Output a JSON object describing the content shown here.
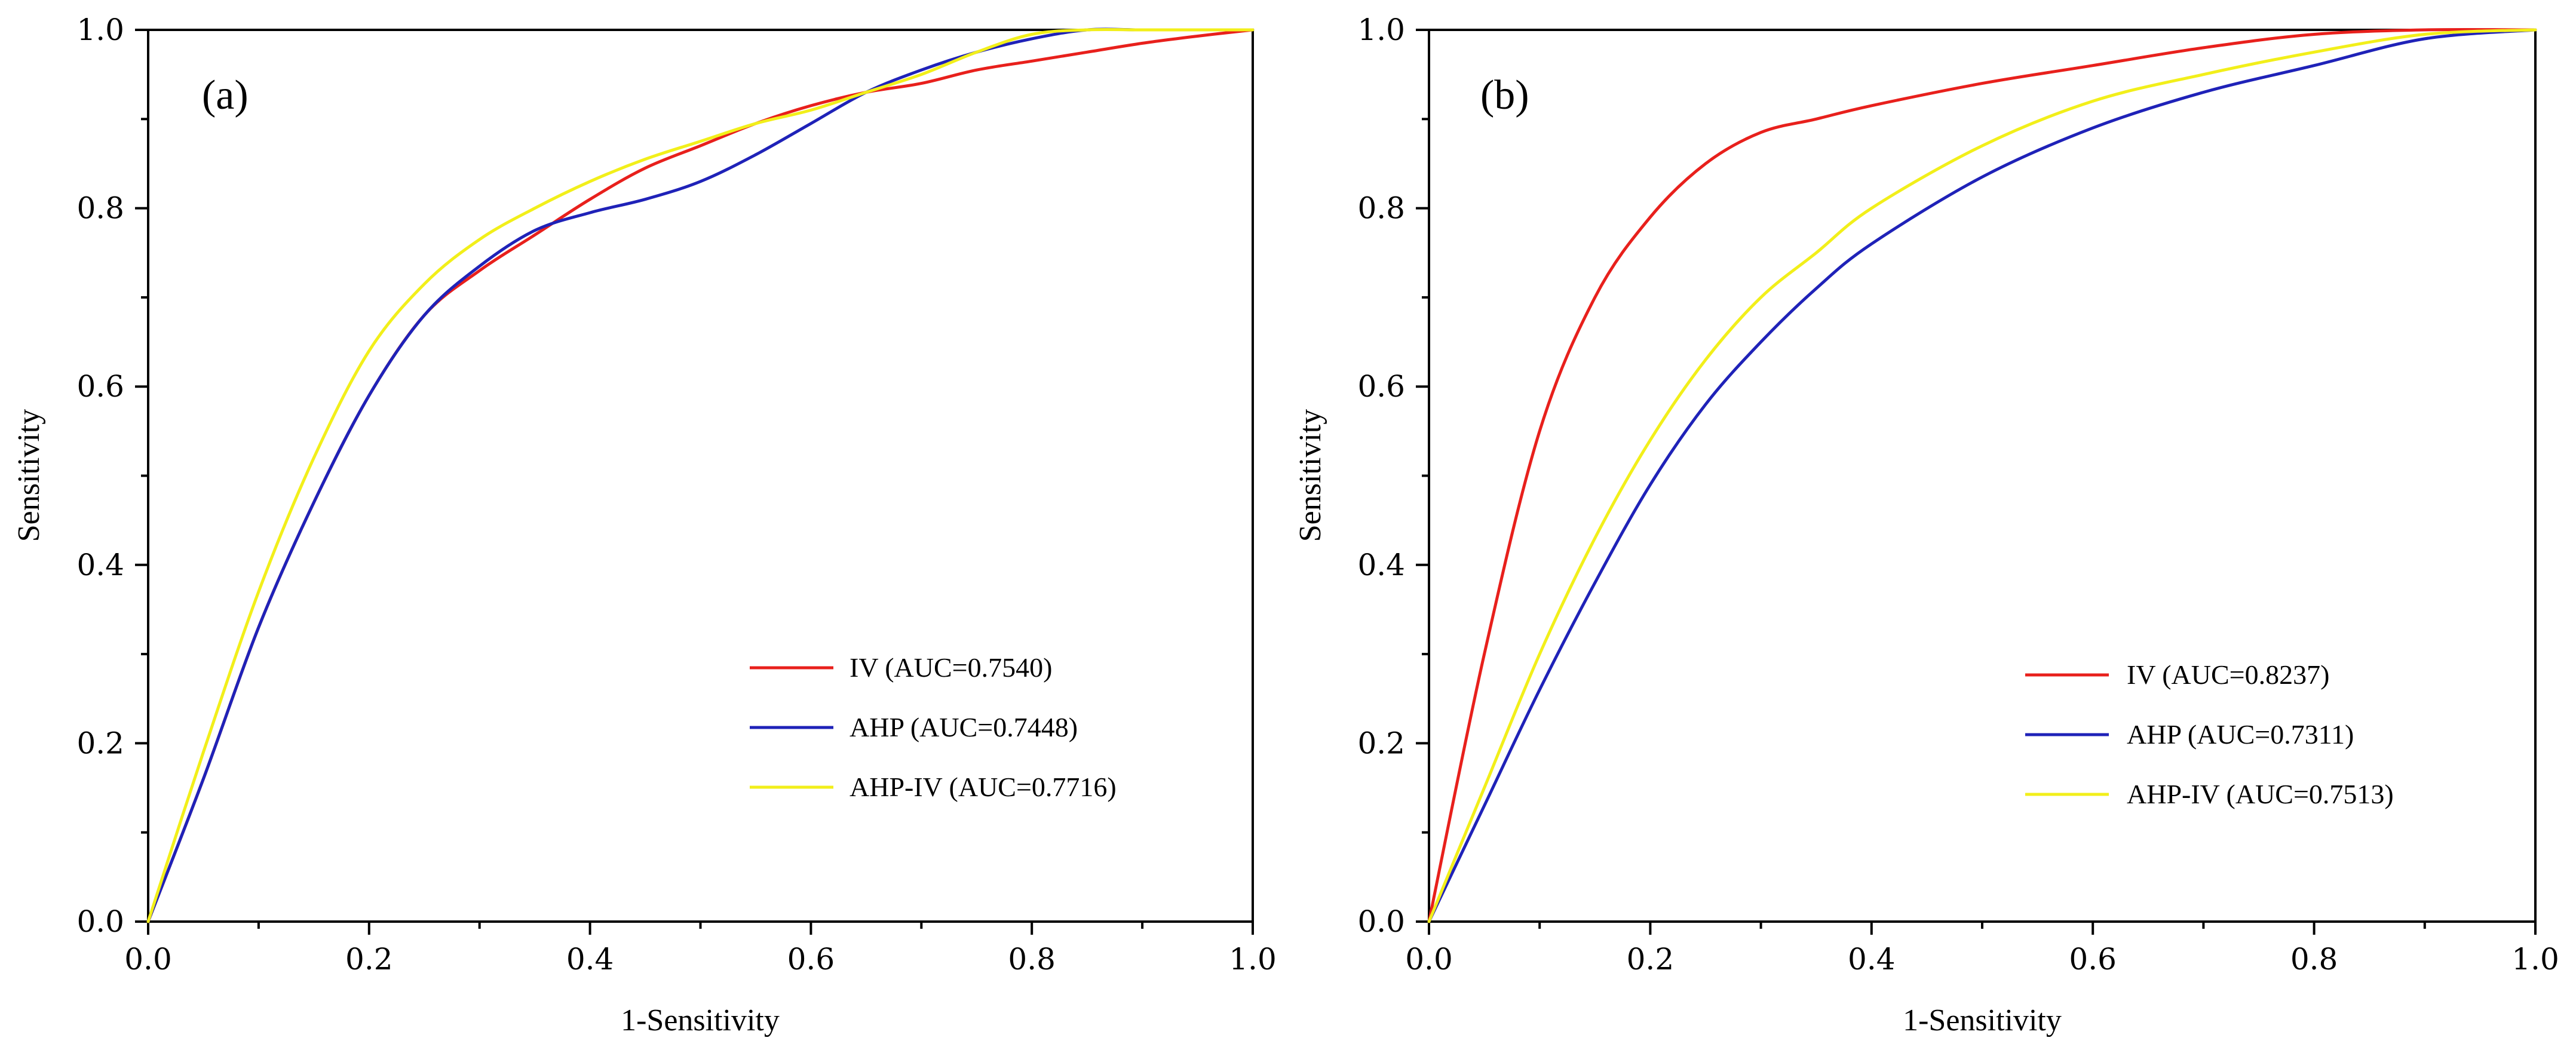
{
  "chart_data": [
    {
      "type": "line",
      "panel_label": "(a)",
      "xlabel": "1-Sensitivity",
      "ylabel": "Sensitivity",
      "xlim": [
        0,
        1
      ],
      "ylim": [
        0,
        1
      ],
      "x_ticks": [
        "0.0",
        "0.2",
        "0.4",
        "0.6",
        "0.8",
        "1.0"
      ],
      "y_ticks": [
        "0.0",
        "0.2",
        "0.4",
        "0.6",
        "0.8",
        "1.0"
      ],
      "legend_position": "bottom-right",
      "series": [
        {
          "name": "IV (AUC=0.7540)",
          "color": "#e8201c",
          "x": [
            0,
            0.05,
            0.1,
            0.15,
            0.2,
            0.25,
            0.3,
            0.35,
            0.4,
            0.45,
            0.5,
            0.55,
            0.6,
            0.65,
            0.7,
            0.75,
            0.8,
            0.85,
            0.9,
            0.95,
            1.0
          ],
          "y": [
            0,
            0.16,
            0.33,
            0.47,
            0.59,
            0.68,
            0.73,
            0.77,
            0.81,
            0.845,
            0.87,
            0.895,
            0.915,
            0.93,
            0.94,
            0.955,
            0.965,
            0.975,
            0.985,
            0.993,
            1.0
          ]
        },
        {
          "name": "AHP (AUC=0.7448)",
          "color": "#1f22b8",
          "x": [
            0,
            0.05,
            0.1,
            0.15,
            0.2,
            0.25,
            0.3,
            0.35,
            0.4,
            0.45,
            0.5,
            0.55,
            0.6,
            0.65,
            0.7,
            0.75,
            0.8,
            0.85,
            0.9,
            0.95,
            1.0
          ],
          "y": [
            0,
            0.16,
            0.33,
            0.47,
            0.59,
            0.68,
            0.735,
            0.775,
            0.795,
            0.81,
            0.83,
            0.86,
            0.895,
            0.93,
            0.955,
            0.975,
            0.99,
            1.0,
            1.0,
            1.0,
            1.0
          ]
        },
        {
          "name": "AHP-IV (AUC=0.7716)",
          "color": "#f2ef1a",
          "x": [
            0,
            0.05,
            0.1,
            0.15,
            0.2,
            0.25,
            0.3,
            0.35,
            0.4,
            0.45,
            0.5,
            0.55,
            0.6,
            0.65,
            0.7,
            0.75,
            0.8,
            0.85,
            0.9,
            0.95,
            1.0
          ],
          "y": [
            0,
            0.19,
            0.37,
            0.52,
            0.64,
            0.715,
            0.765,
            0.8,
            0.83,
            0.855,
            0.875,
            0.895,
            0.91,
            0.93,
            0.95,
            0.975,
            0.995,
            1.0,
            1.0,
            1.0,
            1.0
          ]
        }
      ]
    },
    {
      "type": "line",
      "panel_label": "(b)",
      "xlabel": "1-Sensitivity",
      "ylabel": "Sensitivity",
      "xlim": [
        0,
        1
      ],
      "ylim": [
        0,
        1
      ],
      "x_ticks": [
        "0.0",
        "0.2",
        "0.4",
        "0.6",
        "0.8",
        "1.0"
      ],
      "y_ticks": [
        "0.0",
        "0.2",
        "0.4",
        "0.6",
        "0.8",
        "1.0"
      ],
      "legend_position": "bottom-right",
      "series": [
        {
          "name": "IV (AUC=0.8237)",
          "color": "#e8201c",
          "x": [
            0,
            0.05,
            0.1,
            0.15,
            0.2,
            0.25,
            0.3,
            0.35,
            0.4,
            0.5,
            0.6,
            0.7,
            0.8,
            0.9,
            1.0
          ],
          "y": [
            0,
            0.3,
            0.55,
            0.7,
            0.79,
            0.85,
            0.885,
            0.9,
            0.915,
            0.94,
            0.96,
            0.98,
            0.995,
            1.0,
            1.0
          ]
        },
        {
          "name": "AHP (AUC=0.7311)",
          "color": "#1f22b8",
          "x": [
            0,
            0.05,
            0.1,
            0.15,
            0.2,
            0.25,
            0.3,
            0.35,
            0.4,
            0.5,
            0.6,
            0.7,
            0.8,
            0.9,
            1.0
          ],
          "y": [
            0,
            0.13,
            0.26,
            0.38,
            0.49,
            0.58,
            0.65,
            0.71,
            0.76,
            0.835,
            0.89,
            0.93,
            0.96,
            0.99,
            1.0
          ]
        },
        {
          "name": "AHP-IV (AUC=0.7513)",
          "color": "#f2ef1a",
          "x": [
            0,
            0.05,
            0.1,
            0.15,
            0.2,
            0.25,
            0.3,
            0.35,
            0.4,
            0.5,
            0.6,
            0.7,
            0.8,
            0.9,
            1.0
          ],
          "y": [
            0,
            0.15,
            0.3,
            0.43,
            0.54,
            0.63,
            0.7,
            0.75,
            0.8,
            0.87,
            0.92,
            0.95,
            0.975,
            0.995,
            1.0
          ]
        }
      ]
    }
  ]
}
